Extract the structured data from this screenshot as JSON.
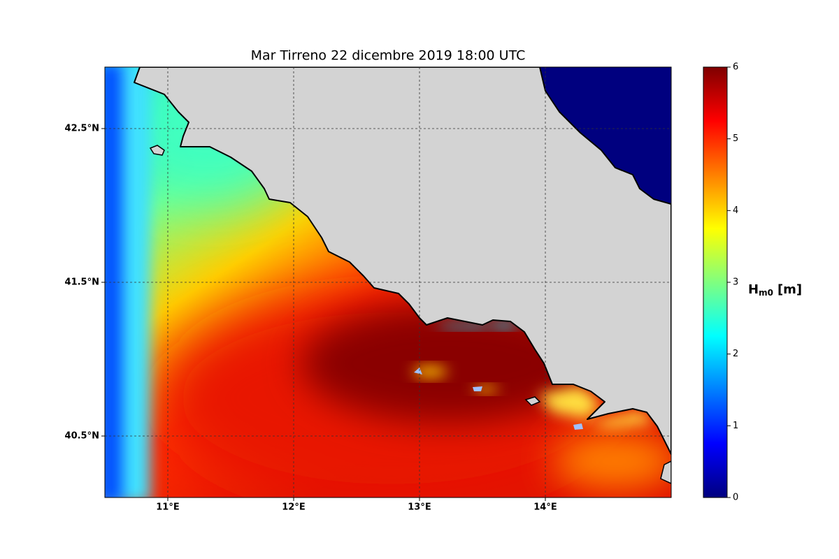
{
  "map": {
    "title": "Mar Tirreno  22 dicembre 2019  18:00 UTC",
    "xlim": [
      10.5,
      15.0
    ],
    "ylim": [
      40.1,
      42.9
    ],
    "xticks": [
      {
        "value": 11,
        "label": "11°E"
      },
      {
        "value": 12,
        "label": "12°E"
      },
      {
        "value": 13,
        "label": "13°E"
      },
      {
        "value": 14,
        "label": "14°E"
      }
    ],
    "yticks": [
      {
        "value": 40.5,
        "label": "40.5°N"
      },
      {
        "value": 41.5,
        "label": "41.5°N"
      },
      {
        "value": 42.5,
        "label": "42.5°N"
      }
    ],
    "grid": true,
    "colorbar": {
      "lim": [
        0,
        6
      ],
      "ticks": [
        0,
        1,
        2,
        3,
        4,
        5,
        6
      ],
      "label": {
        "main": "H",
        "sub": "m0",
        "unit": "[m]"
      }
    }
  }
}
